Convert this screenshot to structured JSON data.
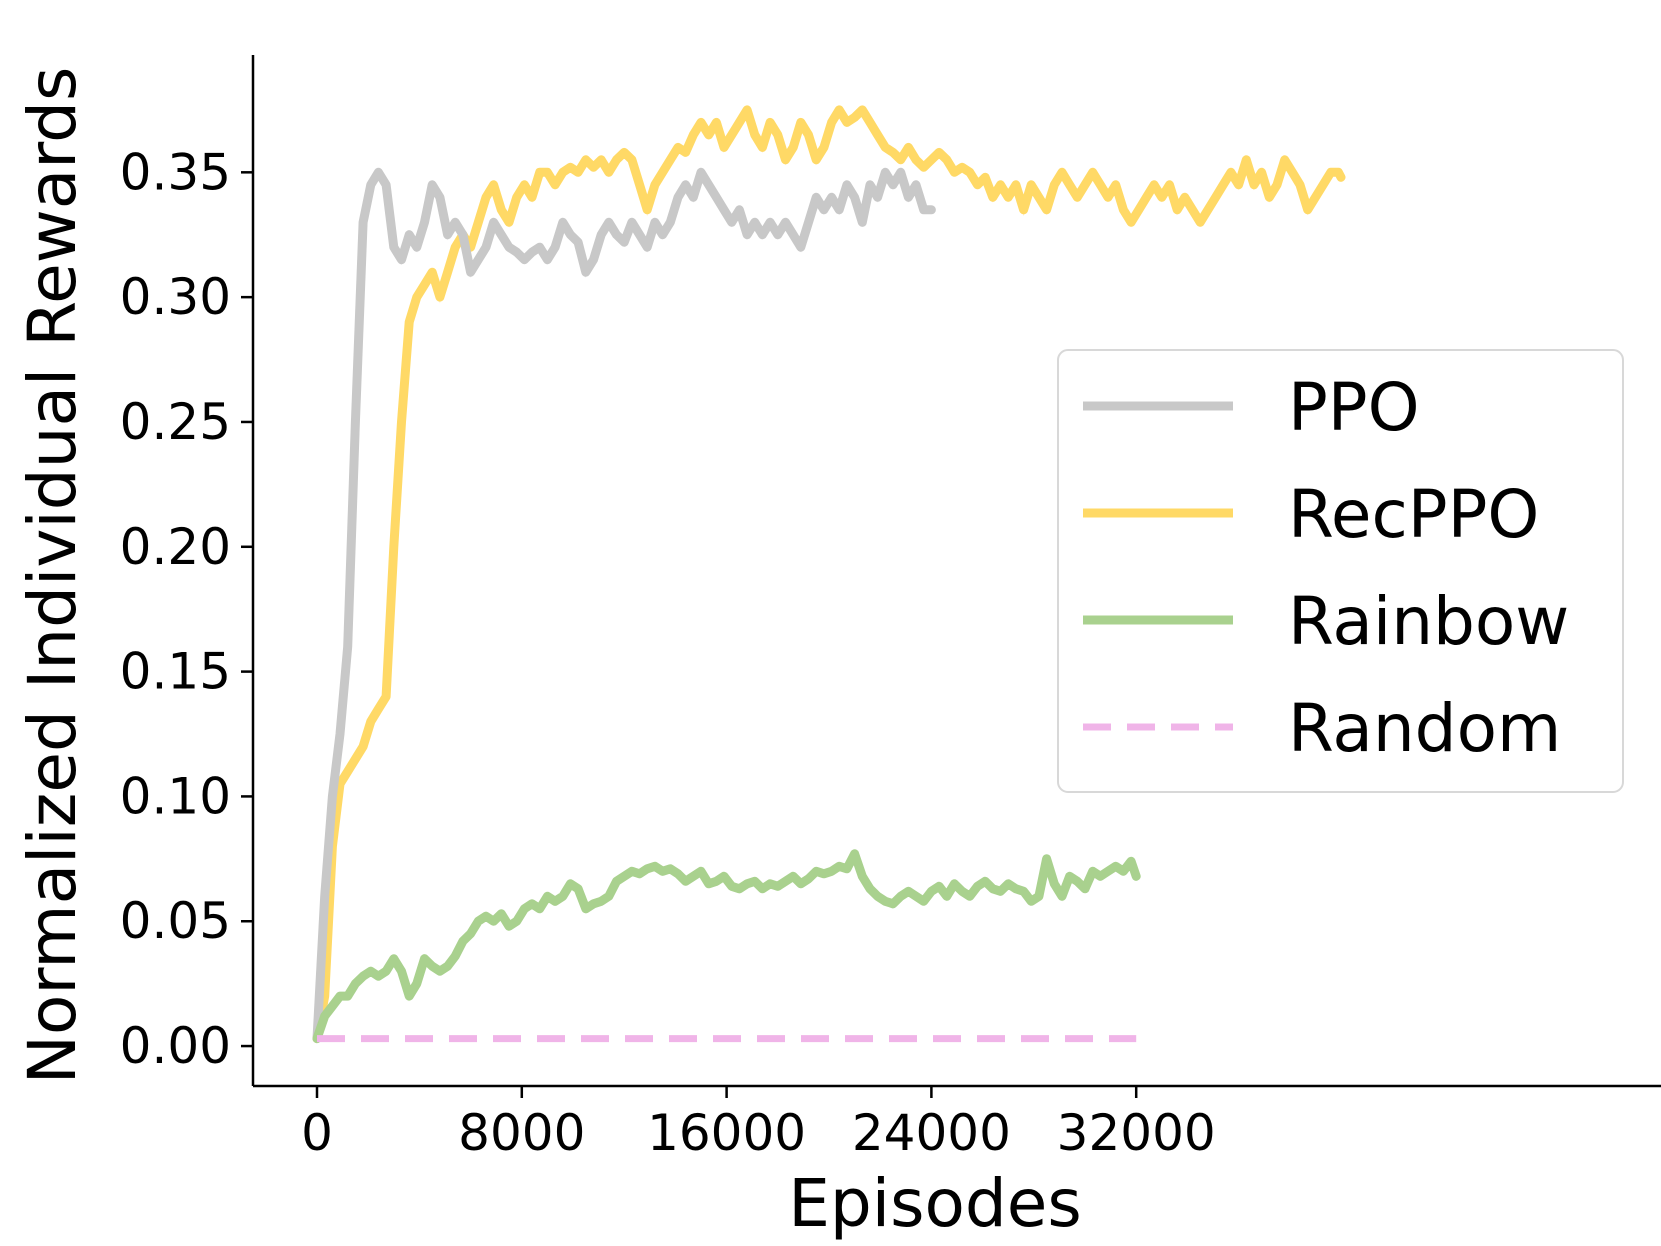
{
  "chart_data": {
    "type": "line",
    "title": "",
    "xlabel": "Episodes",
    "ylabel": "Normalized Individual Rewards",
    "xlim": [
      -2500,
      52500
    ],
    "ylim": [
      -0.016,
      0.397
    ],
    "xticks": [
      0,
      8000,
      16000,
      24000,
      32000
    ],
    "xtick_labels": [
      "0",
      "8000",
      "16000",
      "24000",
      "32000"
    ],
    "yticks": [
      0.0,
      0.05,
      0.1,
      0.15,
      0.2,
      0.25,
      0.3,
      0.35
    ],
    "ytick_labels": [
      "0.00",
      "0.05",
      "0.10",
      "0.15",
      "0.20",
      "0.25",
      "0.30",
      "0.35"
    ],
    "grid": false,
    "legend_position": "center-right",
    "series": [
      {
        "name": "PPO",
        "color": "#c8c8c8",
        "style": "solid",
        "x": [
          0,
          300,
          600,
          900,
          1200,
          1500,
          1800,
          2100,
          2400,
          2700,
          3000,
          3300,
          3600,
          3900,
          4200,
          4500,
          4800,
          5100,
          5400,
          5700,
          6000,
          6300,
          6600,
          6900,
          7200,
          7500,
          7800,
          8100,
          8400,
          8700,
          9000,
          9300,
          9600,
          9900,
          10200,
          10500,
          10800,
          11100,
          11400,
          11700,
          12000,
          12300,
          12600,
          12900,
          13200,
          13500,
          13800,
          14100,
          14400,
          14700,
          15000,
          15300,
          15600,
          15900,
          16200,
          16500,
          16800,
          17100,
          17400,
          17700,
          18000,
          18300,
          18600,
          18900,
          19200,
          19500,
          19800,
          20100,
          20400,
          20700,
          21000,
          21300,
          21600,
          21900,
          22200,
          22500,
          22800,
          23100,
          23400,
          23700,
          24000
        ],
        "values": [
          0.003,
          0.06,
          0.1,
          0.125,
          0.16,
          0.25,
          0.33,
          0.345,
          0.35,
          0.345,
          0.32,
          0.315,
          0.325,
          0.32,
          0.33,
          0.345,
          0.34,
          0.325,
          0.33,
          0.325,
          0.31,
          0.315,
          0.32,
          0.33,
          0.325,
          0.32,
          0.318,
          0.315,
          0.318,
          0.32,
          0.315,
          0.32,
          0.33,
          0.325,
          0.322,
          0.31,
          0.315,
          0.325,
          0.33,
          0.325,
          0.322,
          0.33,
          0.325,
          0.32,
          0.33,
          0.325,
          0.33,
          0.34,
          0.345,
          0.34,
          0.35,
          0.345,
          0.34,
          0.335,
          0.33,
          0.335,
          0.325,
          0.33,
          0.325,
          0.33,
          0.325,
          0.33,
          0.325,
          0.32,
          0.33,
          0.34,
          0.335,
          0.34,
          0.335,
          0.345,
          0.34,
          0.33,
          0.345,
          0.34,
          0.35,
          0.345,
          0.35,
          0.34,
          0.345,
          0.335,
          0.335
        ]
      },
      {
        "name": "RecPPO",
        "color": "#ffd966",
        "style": "solid",
        "x": [
          0,
          300,
          600,
          900,
          1200,
          1500,
          1800,
          2100,
          2400,
          2700,
          3000,
          3300,
          3600,
          3900,
          4200,
          4500,
          4800,
          5100,
          5400,
          5700,
          6000,
          6300,
          6600,
          6900,
          7200,
          7500,
          7800,
          8100,
          8400,
          8700,
          9000,
          9300,
          9600,
          9900,
          10200,
          10500,
          10800,
          11100,
          11400,
          11700,
          12000,
          12300,
          12600,
          12900,
          13200,
          13500,
          13800,
          14100,
          14400,
          14700,
          15000,
          15300,
          15600,
          15900,
          16200,
          16500,
          16800,
          17100,
          17400,
          17700,
          18000,
          18300,
          18600,
          18900,
          19200,
          19500,
          19800,
          20100,
          20400,
          20700,
          21000,
          21300,
          21600,
          21900,
          22200,
          22500,
          22800,
          23100,
          23400,
          23700,
          24000,
          24300,
          24600,
          24900,
          25200,
          25500,
          25800,
          26100,
          26400,
          26700,
          27000,
          27300,
          27600,
          27900,
          28200,
          28500,
          28800,
          29100,
          29400,
          29700,
          30000,
          30300,
          30600,
          30900,
          31200,
          31500,
          31800,
          32100,
          32400,
          32700,
          33000,
          33300,
          33600,
          33900,
          34200,
          34500,
          34800,
          35100,
          35400,
          35700,
          36000,
          36300,
          36600,
          36900,
          37200,
          37500,
          37800,
          38100,
          38400,
          38700,
          39000,
          39300,
          39600,
          39900,
          40000
        ],
        "values": [
          0.003,
          0.02,
          0.08,
          0.105,
          0.11,
          0.115,
          0.12,
          0.13,
          0.135,
          0.14,
          0.2,
          0.25,
          0.29,
          0.3,
          0.305,
          0.31,
          0.3,
          0.31,
          0.32,
          0.325,
          0.32,
          0.33,
          0.34,
          0.345,
          0.335,
          0.33,
          0.34,
          0.345,
          0.34,
          0.35,
          0.35,
          0.345,
          0.35,
          0.352,
          0.35,
          0.355,
          0.352,
          0.355,
          0.35,
          0.355,
          0.358,
          0.355,
          0.345,
          0.335,
          0.345,
          0.35,
          0.355,
          0.36,
          0.358,
          0.365,
          0.37,
          0.365,
          0.37,
          0.36,
          0.365,
          0.37,
          0.375,
          0.365,
          0.36,
          0.37,
          0.365,
          0.355,
          0.36,
          0.37,
          0.365,
          0.355,
          0.36,
          0.37,
          0.375,
          0.37,
          0.372,
          0.375,
          0.37,
          0.365,
          0.36,
          0.358,
          0.355,
          0.36,
          0.355,
          0.352,
          0.355,
          0.358,
          0.355,
          0.35,
          0.352,
          0.35,
          0.345,
          0.348,
          0.34,
          0.345,
          0.34,
          0.345,
          0.335,
          0.345,
          0.34,
          0.335,
          0.345,
          0.35,
          0.345,
          0.34,
          0.345,
          0.35,
          0.345,
          0.34,
          0.345,
          0.335,
          0.33,
          0.335,
          0.34,
          0.345,
          0.34,
          0.345,
          0.335,
          0.34,
          0.335,
          0.33,
          0.335,
          0.34,
          0.345,
          0.35,
          0.345,
          0.355,
          0.345,
          0.35,
          0.34,
          0.345,
          0.355,
          0.35,
          0.345,
          0.335,
          0.34,
          0.345,
          0.35,
          0.35,
          0.348
        ]
      },
      {
        "name": "Rainbow",
        "color": "#a9d18e",
        "style": "solid",
        "x": [
          0,
          300,
          600,
          900,
          1200,
          1500,
          1800,
          2100,
          2400,
          2700,
          3000,
          3300,
          3600,
          3900,
          4200,
          4500,
          4800,
          5100,
          5400,
          5700,
          6000,
          6300,
          6600,
          6900,
          7200,
          7500,
          7800,
          8100,
          8400,
          8700,
          9000,
          9300,
          9600,
          9900,
          10200,
          10500,
          10800,
          11100,
          11400,
          11700,
          12000,
          12300,
          12600,
          12900,
          13200,
          13500,
          13800,
          14100,
          14400,
          14700,
          15000,
          15300,
          15600,
          15900,
          16200,
          16500,
          16800,
          17100,
          17400,
          17700,
          18000,
          18300,
          18600,
          18900,
          19200,
          19500,
          19800,
          20100,
          20400,
          20700,
          21000,
          21300,
          21600,
          21900,
          22200,
          22500,
          22800,
          23100,
          23400,
          23700,
          24000,
          24300,
          24600,
          24900,
          25200,
          25500,
          25800,
          26100,
          26400,
          26700,
          27000,
          27300,
          27600,
          27900,
          28200,
          28500,
          28800,
          29100,
          29400,
          29700,
          30000,
          30300,
          30600,
          30900,
          31200,
          31500,
          31800,
          32000
        ],
        "values": [
          0.003,
          0.012,
          0.016,
          0.02,
          0.02,
          0.025,
          0.028,
          0.03,
          0.028,
          0.03,
          0.035,
          0.03,
          0.02,
          0.025,
          0.035,
          0.032,
          0.03,
          0.032,
          0.036,
          0.042,
          0.045,
          0.05,
          0.052,
          0.05,
          0.053,
          0.048,
          0.05,
          0.055,
          0.057,
          0.055,
          0.06,
          0.058,
          0.06,
          0.065,
          0.063,
          0.055,
          0.057,
          0.058,
          0.06,
          0.066,
          0.068,
          0.07,
          0.069,
          0.071,
          0.072,
          0.07,
          0.071,
          0.069,
          0.066,
          0.068,
          0.07,
          0.065,
          0.066,
          0.068,
          0.064,
          0.063,
          0.065,
          0.066,
          0.063,
          0.065,
          0.064,
          0.066,
          0.068,
          0.065,
          0.067,
          0.07,
          0.069,
          0.07,
          0.072,
          0.071,
          0.077,
          0.068,
          0.063,
          0.06,
          0.058,
          0.057,
          0.06,
          0.062,
          0.06,
          0.058,
          0.062,
          0.064,
          0.06,
          0.065,
          0.062,
          0.06,
          0.064,
          0.066,
          0.063,
          0.062,
          0.065,
          0.063,
          0.062,
          0.058,
          0.06,
          0.075,
          0.065,
          0.06,
          0.068,
          0.066,
          0.063,
          0.07,
          0.068,
          0.07,
          0.072,
          0.07,
          0.074,
          0.068
        ]
      },
      {
        "name": "Random",
        "color": "#f0b4e8",
        "style": "dashed",
        "x": [
          0,
          32000
        ],
        "values": [
          0.003,
          0.003
        ]
      }
    ]
  }
}
